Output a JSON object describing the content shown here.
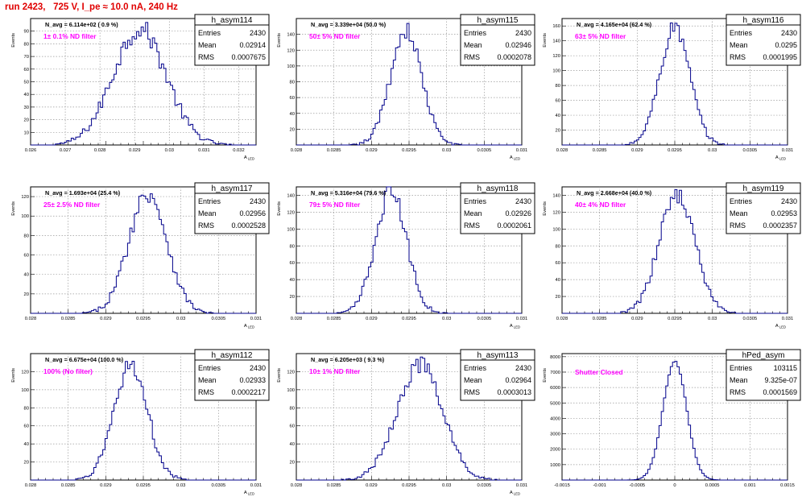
{
  "header": {
    "title": "run 2423,   725 V, I_pe ≈ 10.0 nA, 240 Hz"
  },
  "style": {
    "hist_color": "#00008b",
    "label_color": "#ff00ff",
    "title_color": "#e00000",
    "grid_color": "#9a9a9a"
  },
  "chart_data": [
    {
      "type": "histogram",
      "name": "h_asym114",
      "stats": {
        "Entries": "2430",
        "Mean": "0.02914",
        "RMS": "0.0007675"
      },
      "navg": "N_avg = 6.114e+02 ( 0.9 %)",
      "label": "1± 0.1% ND filter",
      "xlabel": "A_LED",
      "ylabel": "Events",
      "xlim": [
        0.026,
        0.0325
      ],
      "ylim": [
        0,
        100
      ],
      "xticks": [
        0.026,
        0.027,
        0.028,
        0.029,
        0.03,
        0.031,
        0.032
      ],
      "xtick_labels": [
        "0.026",
        "0.027",
        "0.028",
        "0.029",
        "0.03",
        "0.031",
        "0.032"
      ],
      "yticks": [
        10,
        20,
        30,
        40,
        50,
        60,
        70,
        80,
        90
      ],
      "ytick_labels": [
        "10",
        "20",
        "30",
        "40",
        "50",
        "60",
        "70",
        "80",
        "90"
      ],
      "mean": 0.02914,
      "sigma": 0.0007675,
      "peak": 92
    },
    {
      "type": "histogram",
      "name": "h_asym115",
      "stats": {
        "Entries": "2430",
        "Mean": "0.02946",
        "RMS": "0.0002078"
      },
      "navg": "N_avg = 3.339e+04 (50.0 %)",
      "label": "50± 5% ND filter",
      "xlabel": "A_LED",
      "ylabel": "Events",
      "xlim": [
        0.028,
        0.031
      ],
      "ylim": [
        0,
        160
      ],
      "xticks": [
        0.028,
        0.0285,
        0.029,
        0.0295,
        0.03,
        0.0305,
        0.031
      ],
      "xtick_labels": [
        "0.028",
        "0.0285",
        "0.029",
        "0.0295",
        "0.03",
        "0.0305",
        "0.031"
      ],
      "yticks": [
        20,
        40,
        60,
        80,
        100,
        120,
        140
      ],
      "ytick_labels": [
        "20",
        "40",
        "60",
        "80",
        "100",
        "120",
        "140"
      ],
      "mean": 0.02946,
      "sigma": 0.0002078,
      "peak": 145
    },
    {
      "type": "histogram",
      "name": "h_asym116",
      "stats": {
        "Entries": "2430",
        "Mean": "0.0295",
        "RMS": "0.0001995"
      },
      "navg": "N_avg = 4.165e+04 (62.4 %)",
      "label": "63± 5% ND filter",
      "xlabel": "A_LED",
      "ylabel": "Events",
      "xlim": [
        0.028,
        0.031
      ],
      "ylim": [
        0,
        170
      ],
      "xticks": [
        0.028,
        0.0285,
        0.029,
        0.0295,
        0.03,
        0.0305,
        0.031
      ],
      "xtick_labels": [
        "0.028",
        "0.0285",
        "0.029",
        "0.0295",
        "0.03",
        "0.0305",
        "0.031"
      ],
      "yticks": [
        20,
        40,
        60,
        80,
        100,
        120,
        140,
        160
      ],
      "ytick_labels": [
        "20",
        "40",
        "60",
        "80",
        "100",
        "120",
        "140",
        "160"
      ],
      "mean": 0.0295,
      "sigma": 0.0001995,
      "peak": 158
    },
    {
      "type": "histogram",
      "name": "h_asym117",
      "stats": {
        "Entries": "2430",
        "Mean": "0.02956",
        "RMS": "0.0002528"
      },
      "navg": "N_avg = 1.693e+04 (25.4 %)",
      "label": "25± 2.5% ND filter",
      "xlabel": "A_LED",
      "ylabel": "Events",
      "xlim": [
        0.028,
        0.031
      ],
      "ylim": [
        0,
        130
      ],
      "xticks": [
        0.028,
        0.0285,
        0.029,
        0.0295,
        0.03,
        0.0305,
        0.031
      ],
      "xtick_labels": [
        "0.028",
        "0.0285",
        "0.029",
        "0.0295",
        "0.03",
        "0.0305",
        "0.031"
      ],
      "yticks": [
        20,
        40,
        60,
        80,
        100,
        120
      ],
      "ytick_labels": [
        "20",
        "40",
        "60",
        "80",
        "100",
        "120"
      ],
      "mean": 0.02956,
      "sigma": 0.0002528,
      "peak": 124
    },
    {
      "type": "histogram",
      "name": "h_asym118",
      "stats": {
        "Entries": "2430",
        "Mean": "0.02926",
        "RMS": "0.0002061"
      },
      "navg": "N_avg = 5.316e+04 (79.6 %)",
      "label": "79± 5% ND filter",
      "xlabel": "A_LED",
      "ylabel": "Events",
      "xlim": [
        0.028,
        0.031
      ],
      "ylim": [
        0,
        150
      ],
      "xticks": [
        0.028,
        0.0285,
        0.029,
        0.0295,
        0.03,
        0.0305,
        0.031
      ],
      "xtick_labels": [
        "0.028",
        "0.0285",
        "0.029",
        "0.0295",
        "0.03",
        "0.0305",
        "0.031"
      ],
      "yticks": [
        20,
        40,
        60,
        80,
        100,
        120,
        140
      ],
      "ytick_labels": [
        "20",
        "40",
        "60",
        "80",
        "100",
        "120",
        "140"
      ],
      "mean": 0.02926,
      "sigma": 0.0002061,
      "peak": 145
    },
    {
      "type": "histogram",
      "name": "h_asym119",
      "stats": {
        "Entries": "2430",
        "Mean": "0.02953",
        "RMS": "0.0002357"
      },
      "navg": "N_avg = 2.668e+04 (40.0 %)",
      "label": "40± 4% ND filter",
      "xlabel": "A_LED",
      "ylabel": "Events",
      "xlim": [
        0.028,
        0.031
      ],
      "ylim": [
        0,
        150
      ],
      "xticks": [
        0.028,
        0.0285,
        0.029,
        0.0295,
        0.03,
        0.0305,
        0.031
      ],
      "xtick_labels": [
        "0.028",
        "0.0285",
        "0.029",
        "0.0295",
        "0.03",
        "0.0305",
        "0.031"
      ],
      "yticks": [
        20,
        40,
        60,
        80,
        100,
        120,
        140
      ],
      "ytick_labels": [
        "20",
        "40",
        "60",
        "80",
        "100",
        "120",
        "140"
      ],
      "mean": 0.02953,
      "sigma": 0.0002357,
      "peak": 142
    },
    {
      "type": "histogram",
      "name": "h_asym112",
      "stats": {
        "Entries": "2430",
        "Mean": "0.02933",
        "RMS": "0.0002217"
      },
      "navg": "N_avg = 6.675e+04 (100.0 %)",
      "label": "100% (No filter)",
      "xlabel": "A_LED",
      "ylabel": "Events",
      "xlim": [
        0.028,
        0.031
      ],
      "ylim": [
        0,
        140
      ],
      "xticks": [
        0.028,
        0.0285,
        0.029,
        0.0295,
        0.03,
        0.0305,
        0.031
      ],
      "xtick_labels": [
        "0.028",
        "0.0285",
        "0.029",
        "0.0295",
        "0.03",
        "0.0305",
        "0.031"
      ],
      "yticks": [
        20,
        40,
        60,
        80,
        100,
        120
      ],
      "ytick_labels": [
        "20",
        "40",
        "60",
        "80",
        "100",
        "120"
      ],
      "mean": 0.02933,
      "sigma": 0.0002217,
      "peak": 128
    },
    {
      "type": "histogram",
      "name": "h_asym113",
      "stats": {
        "Entries": "2430",
        "Mean": "0.02964",
        "RMS": "0.0003013"
      },
      "navg": "N_avg = 6.205e+03 ( 9.3 %)",
      "label": "10± 1% ND filter",
      "xlabel": "A_LED",
      "ylabel": "Events",
      "xlim": [
        0.028,
        0.031
      ],
      "ylim": [
        0,
        140
      ],
      "xticks": [
        0.028,
        0.0285,
        0.029,
        0.0295,
        0.03,
        0.0305,
        0.031
      ],
      "xtick_labels": [
        "0.028",
        "0.0285",
        "0.029",
        "0.0295",
        "0.03",
        "0.0305",
        "0.031"
      ],
      "yticks": [
        20,
        40,
        60,
        80,
        100,
        120
      ],
      "ytick_labels": [
        "20",
        "40",
        "60",
        "80",
        "100",
        "120"
      ],
      "mean": 0.02964,
      "sigma": 0.0003013,
      "peak": 128
    },
    {
      "type": "histogram",
      "name": "hPed_asym",
      "stats": {
        "Entries": "103115",
        "Mean": "9.325e-07",
        "RMS": "0.0001569"
      },
      "navg": "",
      "label": "Shutter Closed",
      "xlabel": "",
      "ylabel": "Events",
      "xlim": [
        -0.0015,
        0.0015
      ],
      "ylim": [
        0,
        8200
      ],
      "xticks": [
        -0.0015,
        -0.001,
        -0.0005,
        0,
        0.0005,
        0.001,
        0.0015
      ],
      "xtick_labels": [
        "-0.0015",
        "-0.001",
        "-0.0005",
        "0",
        "0.0005",
        "0.001",
        "0.0015"
      ],
      "yticks": [
        1000,
        2000,
        3000,
        4000,
        5000,
        6000,
        7000,
        8000
      ],
      "ytick_labels": [
        "1000",
        "2000",
        "3000",
        "4000",
        "5000",
        "6000",
        "7000",
        "8000"
      ],
      "mean": 0.0,
      "sigma": 0.0001569,
      "peak": 7700
    }
  ]
}
